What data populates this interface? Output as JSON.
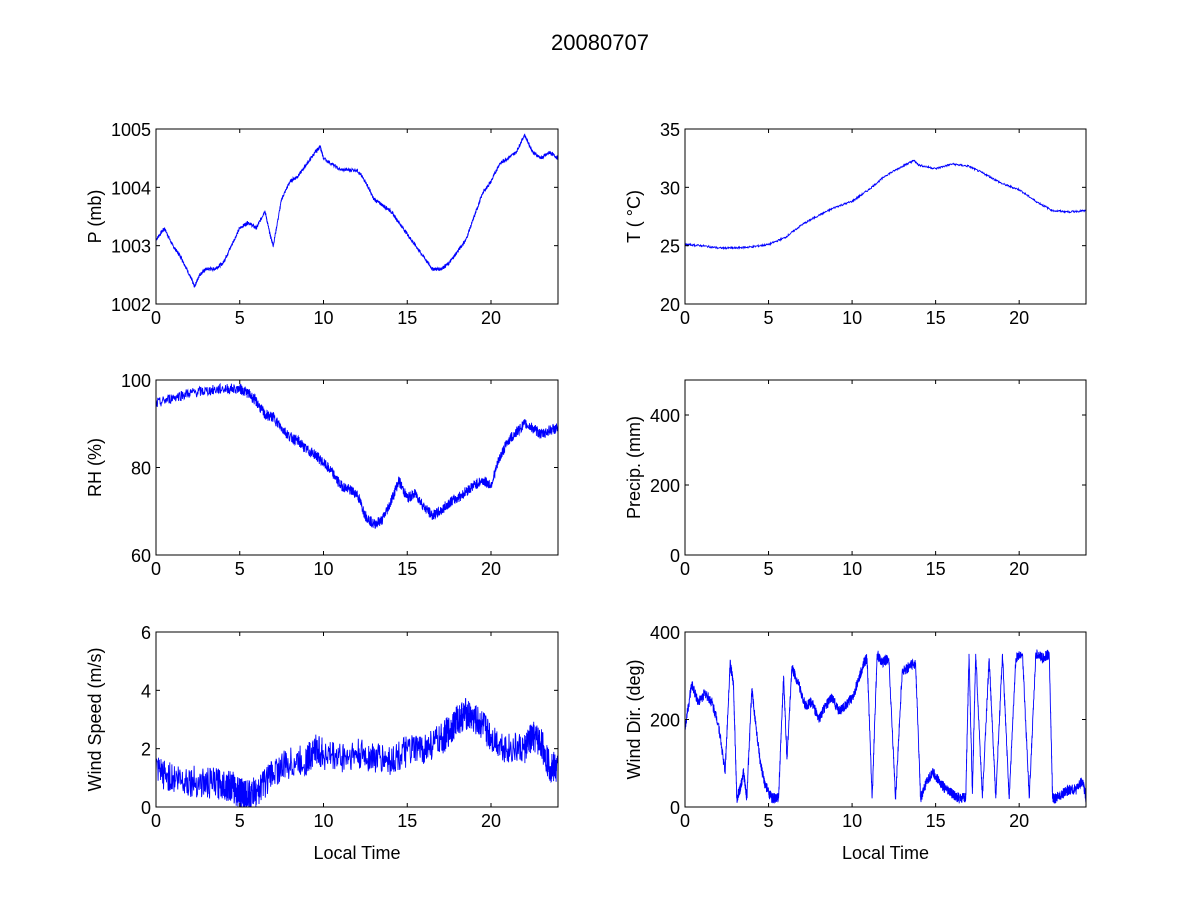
{
  "figure": {
    "title": "20080707"
  },
  "colors": {
    "line": "#0000ff",
    "axes": "#000000",
    "background": "#ffffff"
  },
  "chart_data": [
    {
      "id": "pressure",
      "type": "line",
      "ylabel": "P (mb)",
      "xlabel": "",
      "xlim": [
        0,
        24
      ],
      "ylim": [
        1002,
        1005
      ],
      "xticks": [
        0,
        5,
        10,
        15,
        20
      ],
      "yticks": [
        1002,
        1003,
        1004,
        1005
      ],
      "grid": false,
      "noise": 0.03,
      "series": [
        {
          "x": [
            0,
            0.5,
            1,
            1.5,
            2,
            2.3,
            2.6,
            3,
            3.5,
            4,
            4.5,
            5,
            5.5,
            6,
            6.5,
            6.8,
            7,
            7.5,
            8,
            8.5,
            9,
            9.5,
            9.8,
            10,
            11,
            12,
            12.5,
            13,
            13.5,
            14,
            14.5,
            15,
            15.5,
            16,
            16.5,
            17,
            17.5,
            18,
            18.5,
            19,
            19.5,
            20,
            20.5,
            21,
            21.5,
            22,
            22.5,
            23,
            23.5,
            24
          ],
          "y": [
            1003.1,
            1003.3,
            1003.0,
            1002.8,
            1002.5,
            1002.3,
            1002.5,
            1002.6,
            1002.6,
            1002.7,
            1003.0,
            1003.3,
            1003.4,
            1003.3,
            1003.6,
            1003.2,
            1003.0,
            1003.8,
            1004.1,
            1004.2,
            1004.4,
            1004.6,
            1004.7,
            1004.5,
            1004.3,
            1004.3,
            1004.1,
            1003.8,
            1003.7,
            1003.6,
            1003.4,
            1003.2,
            1003.0,
            1002.8,
            1002.6,
            1002.6,
            1002.7,
            1002.9,
            1003.1,
            1003.5,
            1003.9,
            1004.1,
            1004.4,
            1004.5,
            1004.6,
            1004.9,
            1004.6,
            1004.5,
            1004.6,
            1004.5
          ]
        }
      ]
    },
    {
      "id": "temperature",
      "type": "line",
      "ylabel": "T ( °C)",
      "xlabel": "",
      "xlim": [
        0,
        24
      ],
      "ylim": [
        20,
        35
      ],
      "xticks": [
        0,
        5,
        10,
        15,
        20
      ],
      "yticks": [
        20,
        25,
        30,
        35
      ],
      "grid": false,
      "noise": 0.08,
      "series": [
        {
          "x": [
            0,
            1,
            2,
            3,
            4,
            5,
            6,
            7,
            8,
            9,
            10,
            11,
            12,
            13,
            13.7,
            14,
            15,
            16,
            17,
            18,
            19,
            20,
            21,
            22,
            23,
            24
          ],
          "y": [
            25.1,
            25.0,
            24.8,
            24.8,
            24.9,
            25.1,
            25.7,
            26.8,
            27.6,
            28.3,
            28.8,
            29.8,
            31.0,
            31.8,
            32.3,
            31.9,
            31.6,
            32.0,
            31.8,
            31.1,
            30.3,
            29.8,
            28.8,
            28.0,
            27.9,
            28.0
          ]
        }
      ]
    },
    {
      "id": "humidity",
      "type": "line",
      "ylabel": "RH (%)",
      "xlabel": "",
      "xlim": [
        0,
        24
      ],
      "ylim": [
        60,
        100
      ],
      "xticks": [
        0,
        5,
        10,
        15,
        20
      ],
      "yticks": [
        60,
        80,
        100
      ],
      "grid": false,
      "noise": 1.2,
      "series": [
        {
          "x": [
            0,
            1,
            2,
            3,
            4,
            5,
            5.5,
            6,
            6.5,
            7,
            7.5,
            8,
            8.5,
            9,
            9.5,
            10,
            10.5,
            11,
            11.5,
            12,
            12.5,
            13,
            13.5,
            14,
            14.5,
            15,
            15.5,
            16,
            16.5,
            17,
            17.5,
            18,
            18.5,
            19,
            19.5,
            20,
            20.5,
            21,
            21.5,
            22,
            22.5,
            23,
            23.5,
            24
          ],
          "y": [
            94.5,
            96,
            97,
            97.5,
            98,
            98,
            97,
            95,
            92,
            91.5,
            89,
            87,
            86,
            84,
            83,
            81,
            79,
            76,
            75,
            74,
            69,
            67,
            68,
            72,
            77,
            73,
            74,
            71,
            69,
            70,
            72,
            73,
            74.5,
            76,
            77,
            76,
            82,
            86,
            88,
            90,
            89,
            87.5,
            88.5,
            89
          ]
        }
      ]
    },
    {
      "id": "precipitation",
      "type": "line",
      "ylabel": "Precip. (mm)",
      "xlabel": "",
      "xlim": [
        0,
        24
      ],
      "ylim": [
        0,
        500
      ],
      "xticks": [
        0,
        5,
        10,
        15,
        20
      ],
      "yticks": [
        0,
        200,
        400
      ],
      "grid": false,
      "noise": 0,
      "series": [
        {
          "x": [
            20,
            20.8,
            23.5,
            24
          ],
          "y": [
            0,
            0,
            0,
            0
          ]
        }
      ]
    },
    {
      "id": "wind-speed",
      "type": "line",
      "ylabel": "Wind Speed (m/s)",
      "xlabel": "Local Time",
      "xlim": [
        0,
        24
      ],
      "ylim": [
        0,
        6
      ],
      "xticks": [
        0,
        5,
        10,
        15,
        20
      ],
      "yticks": [
        0,
        2,
        4,
        6
      ],
      "grid": false,
      "noise": 0.55,
      "series": [
        {
          "x": [
            0,
            1,
            2,
            3,
            4,
            4.5,
            5,
            5.2,
            5.5,
            6,
            7,
            8,
            9,
            9.5,
            10,
            11,
            12,
            13,
            14,
            15,
            16,
            17,
            17.5,
            18,
            18.5,
            19,
            19.5,
            20,
            21,
            22,
            22.5,
            23,
            23.5,
            24
          ],
          "y": [
            1.2,
            1.0,
            0.9,
            0.8,
            0.8,
            0.7,
            0.5,
            0.4,
            0.4,
            0.5,
            1.2,
            1.5,
            1.6,
            2.0,
            1.8,
            1.7,
            1.8,
            1.7,
            1.6,
            1.9,
            2.0,
            2.3,
            2.6,
            3.0,
            3.2,
            3.0,
            2.8,
            2.4,
            2.0,
            2.0,
            2.4,
            2.2,
            1.4,
            1.3
          ]
        }
      ]
    },
    {
      "id": "wind-direction",
      "type": "line",
      "ylabel": "Wind Dir. (deg)",
      "xlabel": "Local Time",
      "xlim": [
        0,
        24
      ],
      "ylim": [
        0,
        400
      ],
      "xticks": [
        0,
        5,
        10,
        15,
        20
      ],
      "yticks": [
        0,
        200,
        400
      ],
      "grid": false,
      "noise": 12,
      "series": [
        {
          "x": [
            0,
            0.4,
            0.8,
            1.2,
            1.6,
            2.0,
            2.4,
            2.7,
            2.9,
            3.1,
            3.3,
            3.5,
            3.7,
            4.0,
            4.2,
            4.5,
            4.8,
            5.2,
            5.6,
            5.9,
            6.1,
            6.4,
            6.8,
            7.2,
            7.6,
            8.0,
            8.4,
            8.8,
            9.2,
            9.6,
            10.0,
            10.4,
            10.7,
            10.9,
            11.2,
            11.5,
            11.8,
            12.2,
            12.6,
            13.0,
            13.4,
            13.8,
            14.1,
            14.4,
            14.8,
            15.2,
            15.6,
            16.0,
            16.4,
            16.8,
            17.0,
            17.2,
            17.4,
            17.8,
            18.2,
            18.6,
            19.0,
            19.4,
            19.8,
            20.2,
            20.6,
            21.0,
            21.4,
            21.8,
            22.0,
            22.2,
            22.6,
            23.0,
            23.4,
            23.8,
            24.0
          ],
          "y": [
            180,
            280,
            240,
            260,
            240,
            190,
            80,
            330,
            280,
            20,
            40,
            80,
            20,
            270,
            200,
            100,
            50,
            20,
            20,
            300,
            110,
            320,
            280,
            230,
            240,
            200,
            230,
            250,
            220,
            230,
            250,
            290,
            330,
            340,
            20,
            350,
            330,
            340,
            20,
            310,
            320,
            330,
            20,
            50,
            80,
            60,
            40,
            30,
            20,
            20,
            350,
            30,
            350,
            20,
            340,
            20,
            350,
            20,
            340,
            350,
            20,
            350,
            340,
            350,
            20,
            20,
            30,
            40,
            40,
            60,
            20
          ]
        }
      ]
    }
  ]
}
